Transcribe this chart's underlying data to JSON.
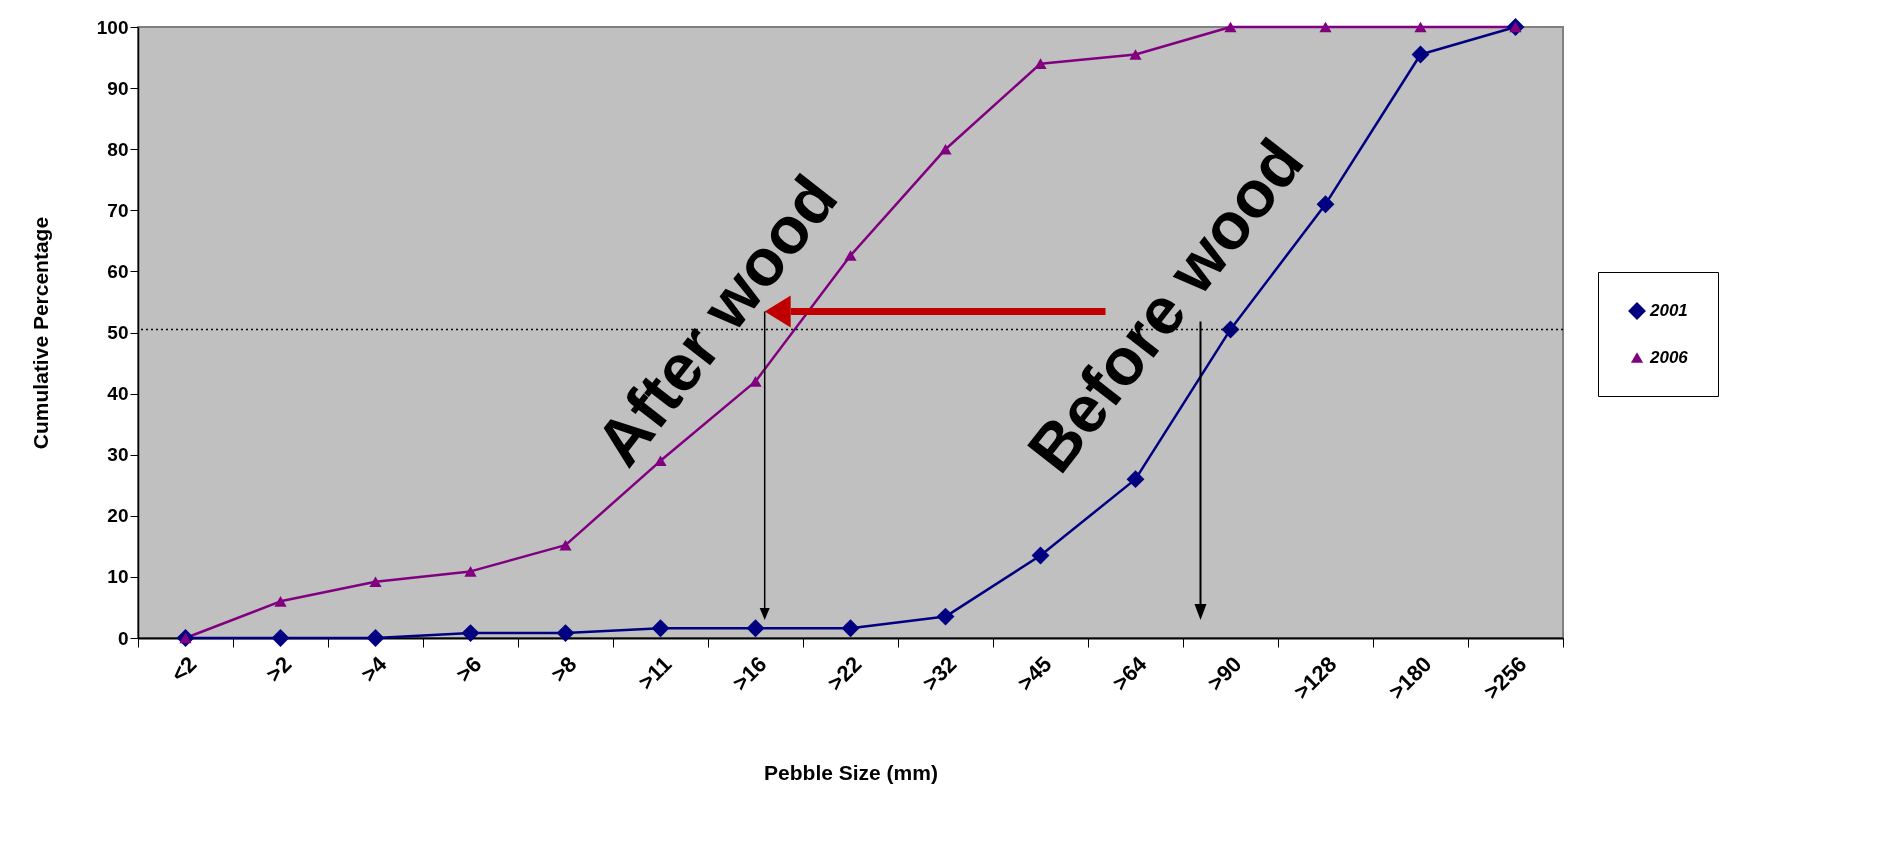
{
  "chart_data": {
    "type": "line",
    "xlabel": "Pebble Size (mm)",
    "ylabel": "Cumulative Percentage",
    "categories": [
      "<2",
      ">2",
      ">4",
      ">6",
      ">8",
      ">11",
      ">16",
      ">22",
      ">32",
      ">45",
      ">64",
      ">90",
      ">128",
      ">180",
      ">256"
    ],
    "series": [
      {
        "name": "2001",
        "color": "#000080",
        "marker": "diamond",
        "values": [
          0,
          0,
          0,
          0.8,
          0.8,
          1.6,
          1.6,
          1.6,
          3.5,
          13.5,
          26,
          50.5,
          71,
          95.5,
          100
        ]
      },
      {
        "name": "2006",
        "color": "#800080",
        "marker": "triangle",
        "values": [
          0,
          6,
          9.2,
          10.9,
          15.2,
          29,
          42,
          62.6,
          80,
          94,
          95.5,
          100,
          100,
          100,
          100
        ]
      }
    ],
    "ylim": [
      0,
      100
    ],
    "yticks": [
      0,
      10,
      20,
      30,
      40,
      50,
      60,
      70,
      80,
      90,
      100
    ],
    "grid": false,
    "legend": "right",
    "ref_lines": [
      {
        "axis": "y",
        "value": 50.5,
        "line_style": "dotted",
        "color": "#000000"
      }
    ],
    "annotations": [
      {
        "text": "After wood",
        "y": 50.5
      },
      {
        "text": "Before wood",
        "y": 50.5
      }
    ]
  }
}
